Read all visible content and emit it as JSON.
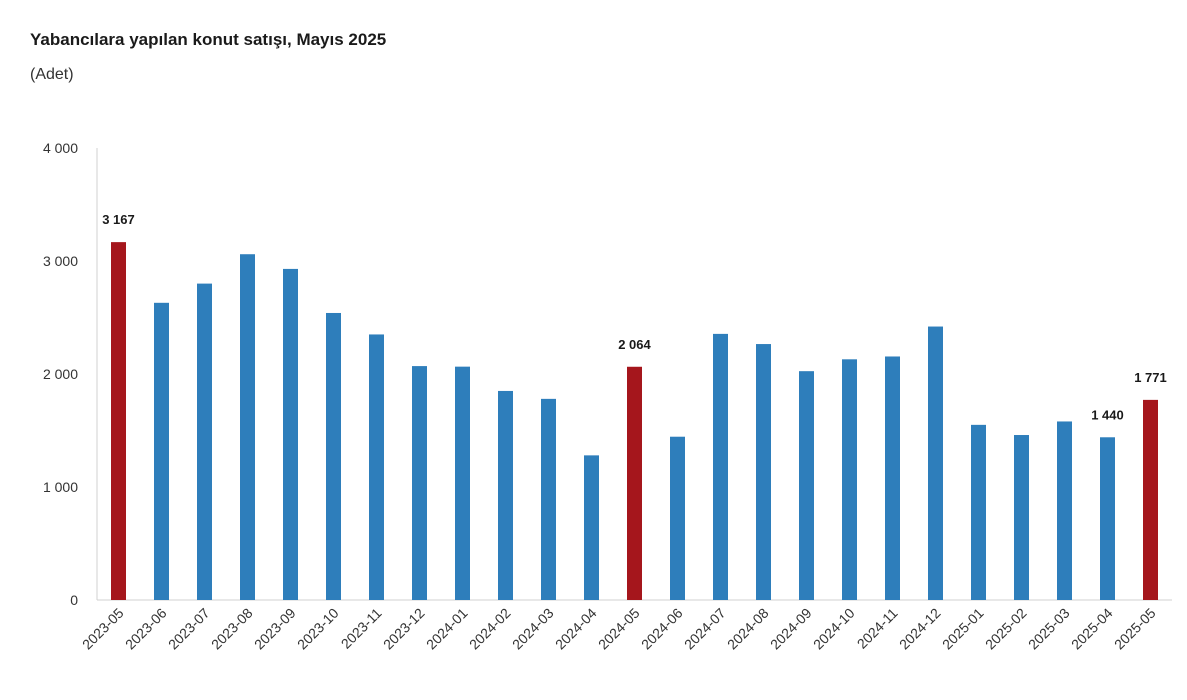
{
  "header": {
    "title": "Yabancılara yapılan konut satışı, Mayıs 2025",
    "subtitle": "(Adet)"
  },
  "colors": {
    "normal": "#2e7ebb",
    "highlight": "#a5161c",
    "axis": "#d0d0d0"
  },
  "chart_data": {
    "type": "bar",
    "title": "Yabancılara yapılan konut satışı, Mayıs 2025",
    "subtitle": "(Adet)",
    "xlabel": "",
    "ylabel": "",
    "ylim": [
      0,
      4000
    ],
    "yticks": [
      0,
      1000,
      2000,
      3000,
      4000
    ],
    "ytick_labels": [
      "0",
      "1 000",
      "2 000",
      "3 000",
      "4 000"
    ],
    "grid": false,
    "categories": [
      "2023-05",
      "2023-06",
      "2023-07",
      "2023-08",
      "2023-09",
      "2023-10",
      "2023-11",
      "2023-12",
      "2024-01",
      "2024-02",
      "2024-03",
      "2024-04",
      "2024-05",
      "2024-06",
      "2024-07",
      "2024-08",
      "2024-09",
      "2024-10",
      "2024-11",
      "2024-12",
      "2025-01",
      "2025-02",
      "2025-03",
      "2025-04",
      "2025-05"
    ],
    "values": [
      3167,
      2630,
      2800,
      3060,
      2930,
      2540,
      2350,
      2070,
      2065,
      1850,
      1780,
      1280,
      2064,
      1445,
      2355,
      2265,
      2025,
      2130,
      2155,
      2420,
      1550,
      1460,
      1580,
      1440,
      1771
    ],
    "highlighted": [
      "2023-05",
      "2024-05",
      "2025-05"
    ],
    "data_labels": [
      {
        "category": "2023-05",
        "text": "3 167"
      },
      {
        "category": "2024-05",
        "text": "2 064"
      },
      {
        "category": "2025-04",
        "text": "1 440"
      },
      {
        "category": "2025-05",
        "text": "1 771"
      }
    ]
  }
}
